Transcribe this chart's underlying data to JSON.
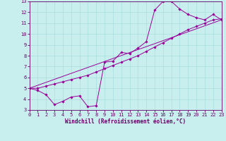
{
  "xlabel": "Windchill (Refroidissement éolien,°C)",
  "bg_color": "#c8eeee",
  "line_color": "#990099",
  "grid_color": "#aadddd",
  "text_color": "#660066",
  "xlim": [
    0,
    23
  ],
  "ylim": [
    3,
    13
  ],
  "xticks": [
    0,
    1,
    2,
    3,
    4,
    5,
    6,
    7,
    8,
    9,
    10,
    11,
    12,
    13,
    14,
    15,
    16,
    17,
    18,
    19,
    20,
    21,
    22,
    23
  ],
  "yticks": [
    3,
    4,
    5,
    6,
    7,
    8,
    9,
    10,
    11,
    12,
    13
  ],
  "line1_x": [
    0,
    1,
    2,
    3,
    4,
    5,
    6,
    7,
    8,
    9,
    10,
    11,
    12,
    13,
    14,
    15,
    16,
    17,
    18,
    19,
    20,
    21,
    22,
    23
  ],
  "line1_y": [
    5.0,
    4.8,
    4.4,
    3.5,
    3.8,
    4.2,
    4.3,
    3.3,
    3.4,
    7.4,
    7.5,
    8.3,
    8.2,
    8.7,
    9.3,
    12.2,
    13.0,
    13.0,
    12.3,
    11.8,
    11.5,
    11.3,
    11.8,
    11.3
  ],
  "line2_x": [
    0,
    1,
    2,
    3,
    4,
    5,
    6,
    7,
    8,
    9,
    10,
    11,
    12,
    13,
    14,
    15,
    16,
    17,
    18,
    19,
    20,
    21,
    22,
    23
  ],
  "line2_y": [
    5.0,
    5.0,
    5.2,
    5.4,
    5.6,
    5.8,
    6.0,
    6.2,
    6.5,
    6.8,
    7.1,
    7.4,
    7.7,
    8.0,
    8.4,
    8.8,
    9.2,
    9.6,
    10.0,
    10.4,
    10.7,
    11.0,
    11.3,
    11.4
  ],
  "line3_x": [
    0,
    23
  ],
  "line3_y": [
    5.0,
    11.3
  ]
}
